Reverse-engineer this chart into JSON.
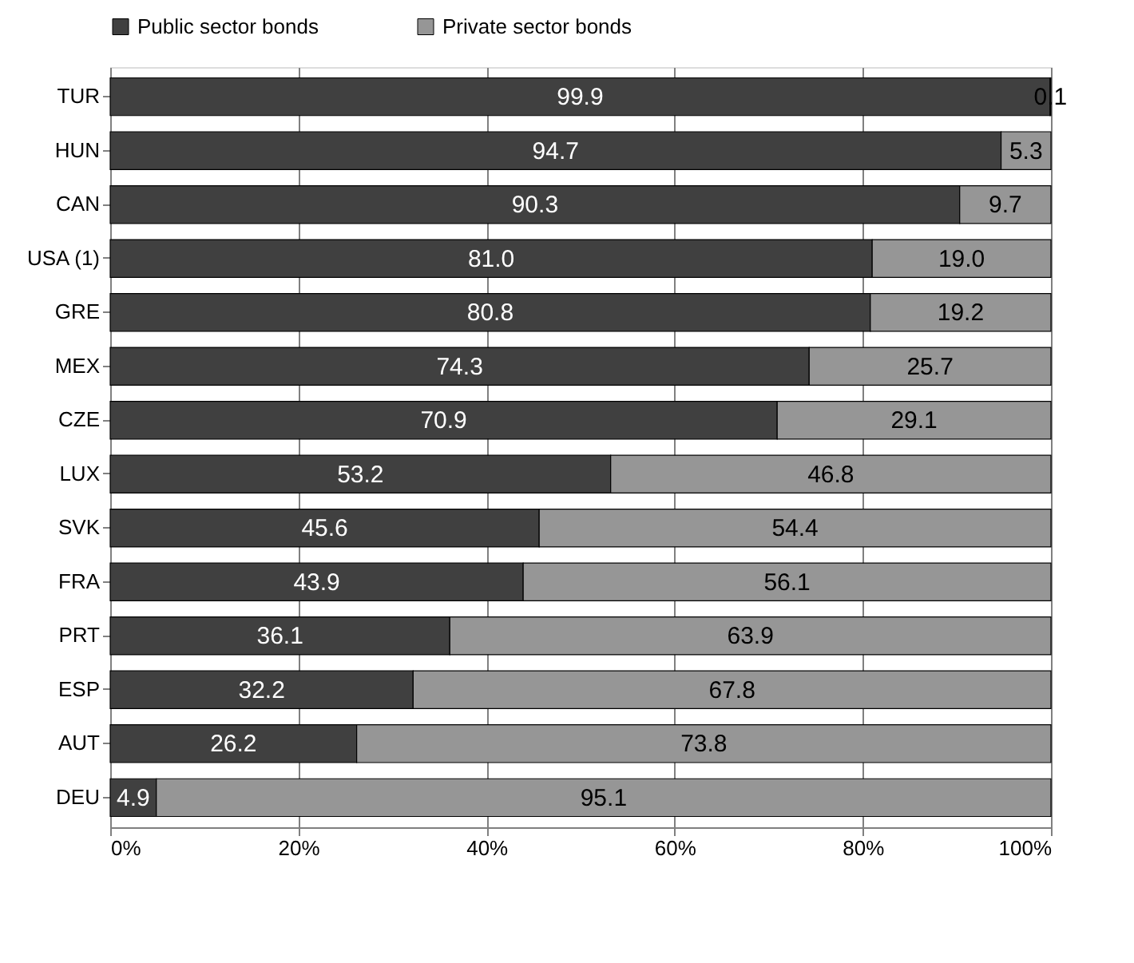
{
  "chart_data": {
    "type": "bar",
    "orientation": "horizontal",
    "stacked": true,
    "categories": [
      "TUR",
      "HUN",
      "CAN",
      "USA (1)",
      "GRE",
      "MEX",
      "CZE",
      "LUX",
      "SVK",
      "FRA",
      "PRT",
      "ESP",
      "AUT",
      "DEU"
    ],
    "series": [
      {
        "name": "Public sector bonds",
        "color": "#404040",
        "values": [
          99.9,
          94.7,
          90.3,
          81.0,
          80.8,
          74.3,
          70.9,
          53.2,
          45.6,
          43.9,
          36.1,
          32.2,
          26.2,
          4.9
        ],
        "value_labels": [
          "99.9",
          "94.7",
          "90.3",
          "81.0",
          "80.8",
          "74.3",
          "70.9",
          "53.2",
          "45.6",
          "43.9",
          "36.1",
          "32.2",
          "26.2",
          "4.9"
        ]
      },
      {
        "name": "Private sector bonds",
        "color": "#969696",
        "values": [
          0.1,
          5.3,
          9.7,
          19.0,
          19.2,
          25.7,
          29.1,
          46.8,
          54.4,
          56.1,
          63.9,
          67.8,
          73.8,
          95.1
        ],
        "value_labels": [
          "0.1",
          "5.3",
          "9.7",
          "19.0",
          "19.2",
          "25.7",
          "29.1",
          "46.8",
          "54.4",
          "56.1",
          "63.9",
          "67.8",
          "73.8",
          "95.1"
        ]
      }
    ],
    "xlim": [
      0,
      100
    ],
    "xticks": [
      {
        "value": 0,
        "label": "0%"
      },
      {
        "value": 20,
        "label": "20%"
      },
      {
        "value": 40,
        "label": "40%"
      },
      {
        "value": 60,
        "label": "60%"
      },
      {
        "value": 80,
        "label": "80%"
      },
      {
        "value": 100,
        "label": "100%"
      }
    ],
    "grid": "x",
    "legend": "top"
  }
}
